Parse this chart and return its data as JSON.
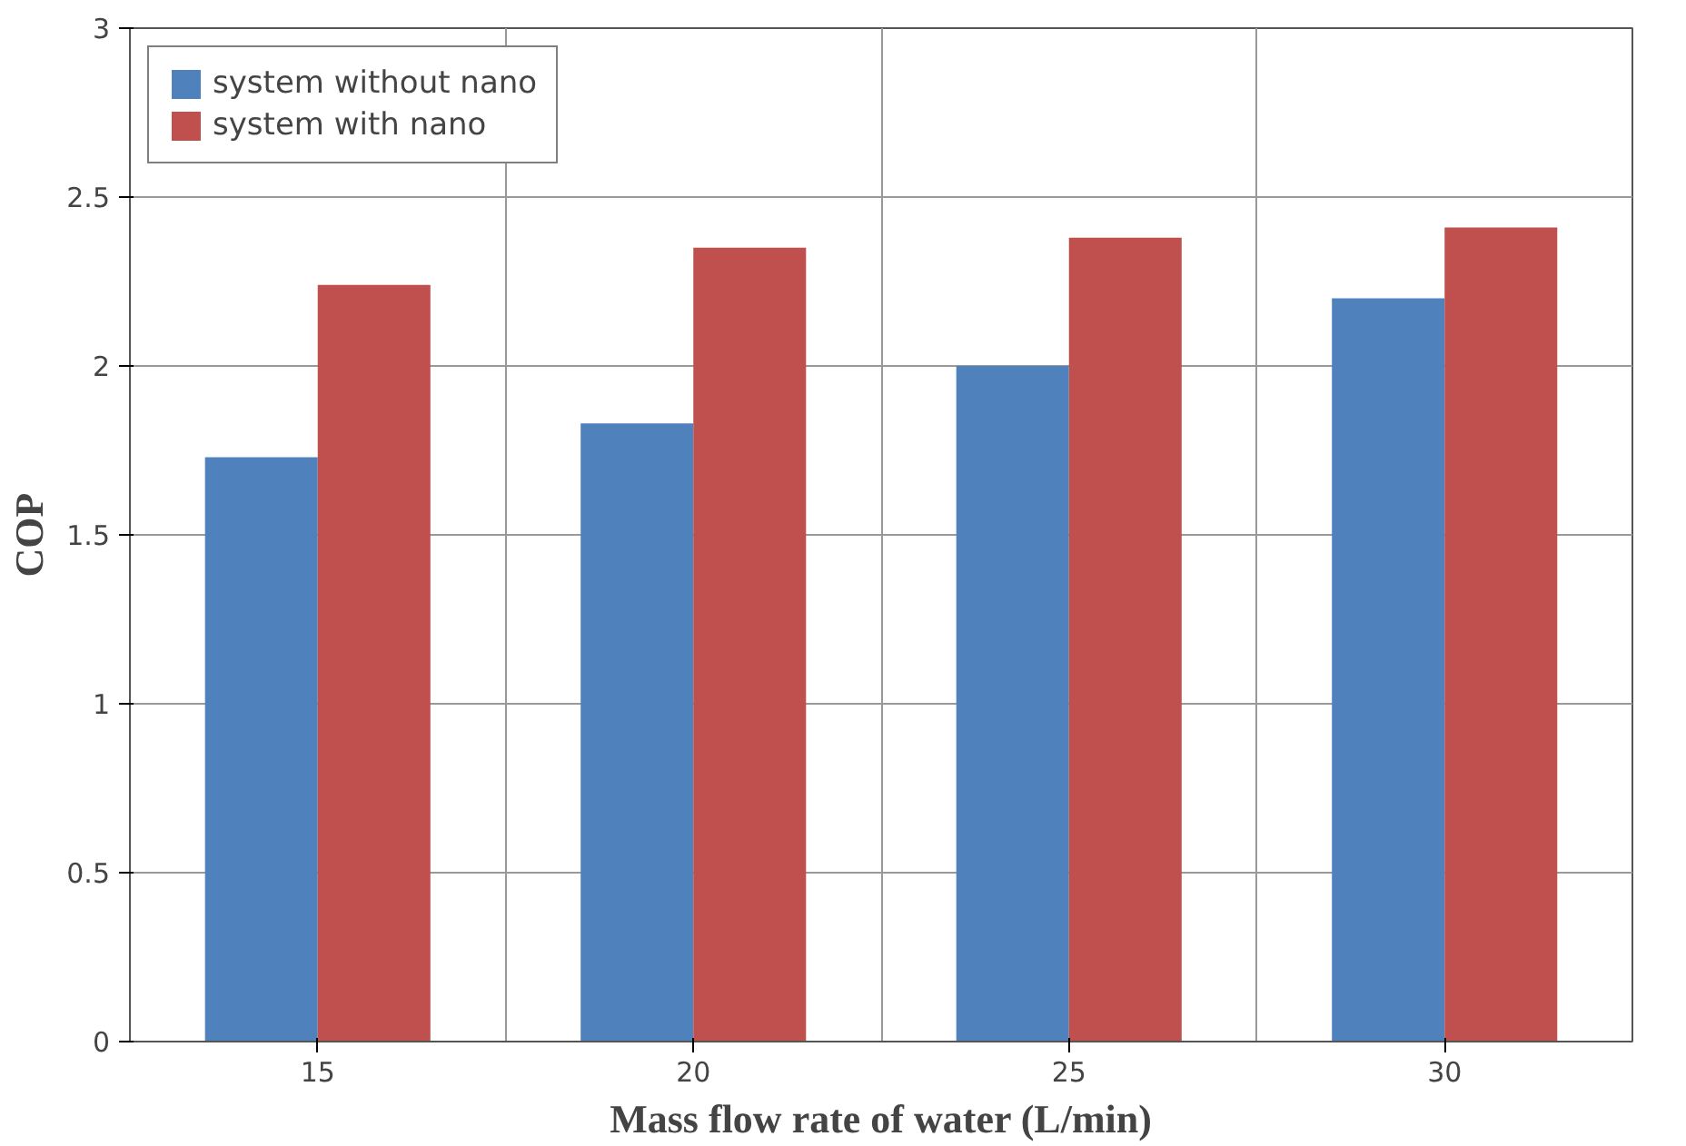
{
  "chart_data": {
    "type": "bar",
    "xlabel": "Mass flow rate of water (L/min)",
    "ylabel": "COP",
    "categories": [
      "15",
      "20",
      "25",
      "30"
    ],
    "series": [
      {
        "name": "system without nano",
        "color": "#4f81bd",
        "values": [
          1.73,
          1.83,
          2.0,
          2.2
        ]
      },
      {
        "name": "system with nano",
        "color": "#c0504d",
        "values": [
          2.24,
          2.35,
          2.38,
          2.41
        ]
      }
    ],
    "ylim": [
      0,
      3
    ],
    "yticks": [
      0,
      0.5,
      1,
      1.5,
      2,
      2.5,
      3
    ],
    "grid": true,
    "legend": "top left"
  }
}
